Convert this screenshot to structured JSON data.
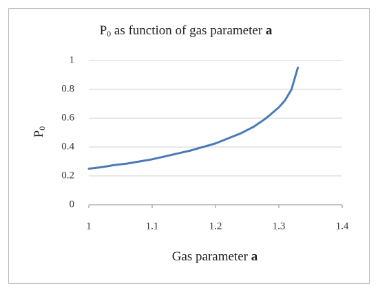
{
  "chart_data": {
    "type": "line",
    "title": [
      "P",
      "0",
      " as function of gas parameter ",
      "a"
    ],
    "xlabel": [
      "Gas parameter ",
      "a"
    ],
    "ylabel": [
      "P",
      "0"
    ],
    "x": [
      1.0,
      1.02,
      1.04,
      1.06,
      1.08,
      1.1,
      1.12,
      1.14,
      1.16,
      1.18,
      1.2,
      1.22,
      1.24,
      1.26,
      1.28,
      1.3,
      1.31,
      1.32,
      1.33
    ],
    "values": [
      0.25,
      0.26,
      0.275,
      0.285,
      0.3,
      0.315,
      0.335,
      0.355,
      0.375,
      0.4,
      0.425,
      0.46,
      0.495,
      0.54,
      0.6,
      0.675,
      0.725,
      0.8,
      0.95
    ],
    "color": "#4a7ab5",
    "xlim": [
      1,
      1.4
    ],
    "xticks": [
      1,
      1.1,
      1.2,
      1.3,
      1.4
    ],
    "ylim": [
      0,
      1
    ],
    "yticks": [
      0,
      0.2,
      0.4,
      0.6,
      0.8,
      1
    ],
    "grid": true
  }
}
